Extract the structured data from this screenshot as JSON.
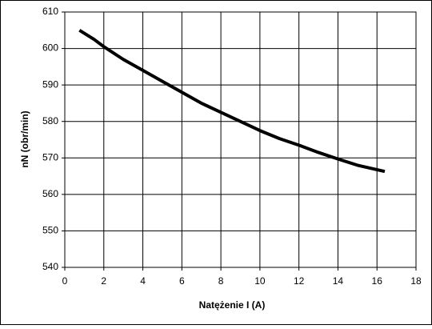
{
  "chart_data": {
    "type": "line",
    "x_label": "Natężenie I (A)",
    "y_label": "nN (obr/min)",
    "x": [
      0.75,
      1.5,
      2,
      3,
      4,
      5,
      6,
      7,
      8,
      9,
      10,
      11,
      12,
      13,
      14,
      15,
      16.4
    ],
    "values": [
      605,
      602.5,
      600.5,
      597,
      594,
      591,
      588,
      585,
      582.5,
      580,
      577.5,
      575.3,
      573.5,
      571.5,
      569.7,
      568,
      566.3
    ],
    "color": "#000000",
    "xlim": [
      0,
      18
    ],
    "xticks": [
      0,
      2,
      4,
      6,
      8,
      10,
      12,
      14,
      16,
      18
    ],
    "ylim": [
      540,
      610
    ],
    "yticks": [
      540,
      550,
      560,
      570,
      580,
      590,
      600,
      610
    ],
    "grid": true
  }
}
